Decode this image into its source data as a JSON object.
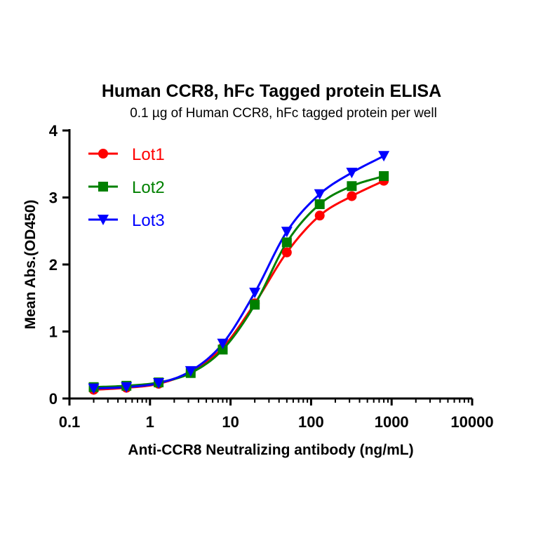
{
  "chart_data": {
    "type": "scatter",
    "title": "Human CCR8, hFc Tagged protein ELISA",
    "subtitle": "0.1 µg of Human CCR8, hFc tagged protein per well",
    "xlabel": "Anti-CCR8 Neutralizing antibody (ng/mL)",
    "ylabel": "Mean Abs.(OD450)",
    "x_scale": "log",
    "xlim": [
      0.1,
      10000
    ],
    "ylim": [
      0,
      4
    ],
    "x_ticks": [
      0.1,
      1,
      10,
      100,
      1000,
      10000
    ],
    "x_tick_labels": [
      "0.1",
      "1",
      "10",
      "100",
      "1000",
      "10000"
    ],
    "y_ticks": [
      0,
      1,
      2,
      3,
      4
    ],
    "y_tick_labels": [
      "0",
      "1",
      "2",
      "3",
      "4"
    ],
    "grid": false,
    "legend_position": "top-left",
    "fit_curves": true,
    "x": [
      0.2,
      0.51,
      1.28,
      3.2,
      8,
      20,
      50,
      128,
      320,
      800
    ],
    "series": [
      {
        "name": "Lot1",
        "color": "#ff0000",
        "marker": "circle",
        "values": [
          0.13,
          0.16,
          0.22,
          0.4,
          0.76,
          1.42,
          2.18,
          2.73,
          3.02,
          3.25
        ]
      },
      {
        "name": "Lot2",
        "color": "#008000",
        "marker": "square",
        "values": [
          0.17,
          0.19,
          0.24,
          0.38,
          0.73,
          1.4,
          2.33,
          2.9,
          3.17,
          3.32
        ]
      },
      {
        "name": "Lot3",
        "color": "#0000ff",
        "marker": "triangle-down",
        "values": [
          0.15,
          0.17,
          0.23,
          0.41,
          0.82,
          1.58,
          2.49,
          3.05,
          3.37,
          3.62
        ]
      }
    ]
  }
}
